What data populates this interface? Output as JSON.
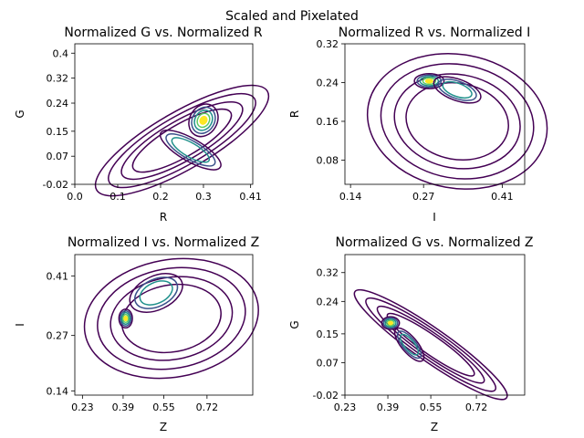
{
  "suptitle": "Scaled and Pixelated",
  "palette": {
    "outer": "#440154",
    "mid1": "#3b528b",
    "mid2": "#21918c",
    "inner": "#5ec962",
    "peak": "#fde725"
  },
  "chart_data": [
    {
      "type": "contour",
      "title": "Normalized G vs. Normalized R",
      "xlabel": "R",
      "ylabel": "G",
      "xlim": [
        0.0,
        0.415
      ],
      "ylim": [
        -0.02,
        0.43
      ],
      "xticks": [
        0.0,
        0.1,
        0.2,
        0.3,
        0.41
      ],
      "xticklabels": [
        "0.0",
        "0.1",
        "0.2",
        "0.3",
        "0.41"
      ],
      "yticks": [
        -0.02,
        0.07,
        0.15,
        0.24,
        0.32,
        0.4
      ],
      "yticklabels": [
        "-0.02",
        "0.07",
        "0.15",
        "0.24",
        "0.32",
        "0.4"
      ],
      "peaks": [
        {
          "x": 0.3,
          "y": 0.185,
          "sx": 0.018,
          "sy": 0.02,
          "rot": 60,
          "w": 1.0
        },
        {
          "x": 0.27,
          "y": 0.09,
          "sx": 0.012,
          "sy": 0.05,
          "rot": 60,
          "w": 0.55
        }
      ],
      "envelope": {
        "x": 0.25,
        "y": 0.12,
        "sx": 0.1,
        "sy": 0.04,
        "rot": 30
      }
    },
    {
      "type": "contour",
      "title": "Normalized R vs. Normalized I",
      "xlabel": "I",
      "ylabel": "R",
      "xlim": [
        0.13,
        0.45
      ],
      "ylim": [
        0.03,
        0.32
      ],
      "xticks": [
        0.14,
        0.27,
        0.41
      ],
      "xticklabels": [
        "0.14",
        "0.27",
        "0.41"
      ],
      "yticks": [
        0.08,
        0.16,
        0.24,
        0.32
      ],
      "yticklabels": [
        "0.08",
        "0.16",
        "0.24",
        "0.32"
      ],
      "peaks": [
        {
          "x": 0.28,
          "y": 0.243,
          "sx": 0.012,
          "sy": 0.007,
          "rot": 0,
          "w": 1.0
        },
        {
          "x": 0.33,
          "y": 0.225,
          "sx": 0.02,
          "sy": 0.01,
          "rot": -20,
          "w": 0.6
        }
      ],
      "envelope": {
        "x": 0.33,
        "y": 0.16,
        "sx": 0.07,
        "sy": 0.06,
        "rot": -10
      }
    },
    {
      "type": "contour",
      "title": "Normalized I vs. Normalized Z",
      "xlabel": "Z",
      "ylabel": "I",
      "xlim": [
        0.2,
        0.9
      ],
      "ylim": [
        0.13,
        0.46
      ],
      "xticks": [
        0.23,
        0.39,
        0.55,
        0.72
      ],
      "xticklabels": [
        "0.23",
        "0.39",
        "0.55",
        "0.72"
      ],
      "yticks": [
        0.14,
        0.27,
        0.41
      ],
      "yticklabels": [
        "0.14",
        "0.27",
        "0.41"
      ],
      "peaks": [
        {
          "x": 0.4,
          "y": 0.31,
          "sx": 0.012,
          "sy": 0.01,
          "rot": 0,
          "w": 1.0
        },
        {
          "x": 0.52,
          "y": 0.37,
          "sx": 0.05,
          "sy": 0.018,
          "rot": 25,
          "w": 0.75
        }
      ],
      "envelope": {
        "x": 0.58,
        "y": 0.31,
        "sx": 0.15,
        "sy": 0.06,
        "rot": 10
      }
    },
    {
      "type": "contour",
      "title": "Normalized G vs. Normalized Z",
      "xlabel": "Z",
      "ylabel": "G",
      "xlim": [
        0.23,
        0.9
      ],
      "ylim": [
        -0.02,
        0.37
      ],
      "xticks": [
        0.23,
        0.39,
        0.55,
        0.72
      ],
      "xticklabels": [
        "0.23",
        "0.39",
        "0.55",
        "0.72"
      ],
      "yticks": [
        -0.02,
        0.07,
        0.15,
        0.24,
        0.32
      ],
      "yticklabels": [
        "-0.02",
        "0.07",
        "0.15",
        "0.24",
        "0.32"
      ],
      "peaks": [
        {
          "x": 0.4,
          "y": 0.18,
          "sx": 0.015,
          "sy": 0.008,
          "rot": 0,
          "w": 1.0
        },
        {
          "x": 0.47,
          "y": 0.12,
          "sx": 0.035,
          "sy": 0.01,
          "rot": -50,
          "w": 0.6
        }
      ],
      "envelope": {
        "x": 0.55,
        "y": 0.12,
        "sx": 0.15,
        "sy": 0.02,
        "rot": -35
      }
    }
  ]
}
